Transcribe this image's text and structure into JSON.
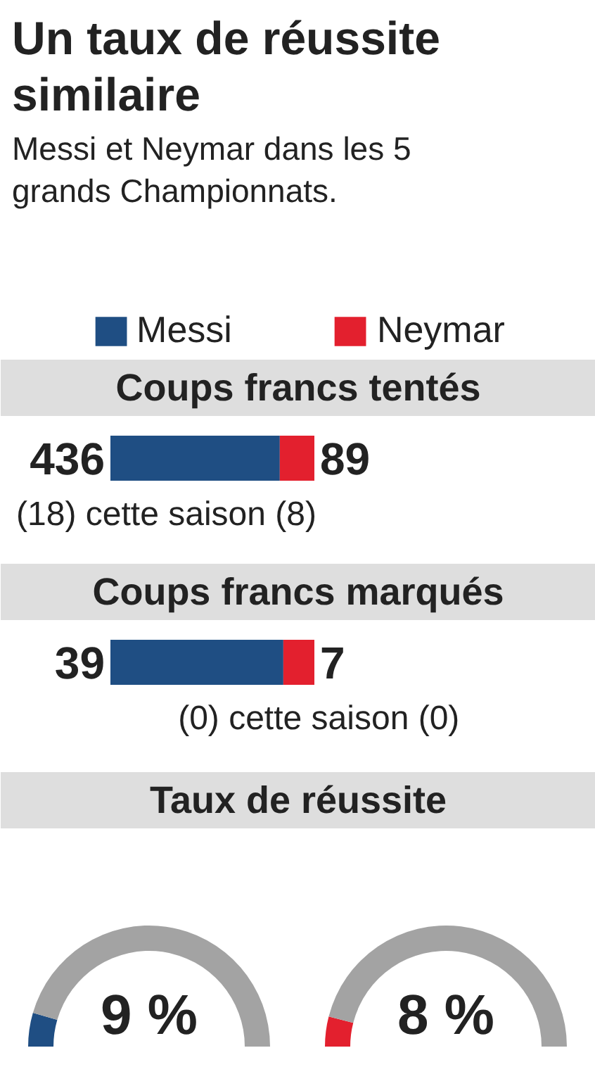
{
  "chart_data": [
    {
      "type": "other",
      "title": "Un taux de réussite similaire",
      "subtitle": "Messi et Neymar dans les 5 grands Championnats."
    },
    {
      "type": "bar",
      "orientation": "horizontal",
      "stacked": true,
      "title": "Coups francs tentés",
      "categories": [
        null
      ],
      "legend": "top",
      "data_labels": true,
      "series": [
        {
          "name": "Messi",
          "color": "#1f4e83",
          "values": [
            436
          ]
        },
        {
          "name": "Neymar",
          "color": "#e3202e",
          "values": [
            89
          ]
        }
      ],
      "annotations": [
        "(18) cette saison (8)"
      ]
    },
    {
      "type": "bar",
      "orientation": "horizontal",
      "stacked": true,
      "title": "Coups francs marqués",
      "categories": [
        null
      ],
      "data_labels": true,
      "series": [
        {
          "color": "#1f4e83",
          "values": [
            39
          ]
        },
        {
          "color": "#e3202e",
          "values": [
            7
          ]
        }
      ],
      "annotations": [
        "(0) cette saison (0)"
      ]
    },
    {
      "type": "donut",
      "title": "Taux de réussite",
      "categories": [
        null,
        null
      ],
      "values": [
        9,
        91
      ],
      "colors": [
        "#1f4e83",
        "#a3a3a3"
      ],
      "annotations": [
        "9 %"
      ]
    },
    {
      "type": "donut",
      "categories": [
        null,
        null
      ],
      "values": [
        8,
        92
      ],
      "colors": [
        "#e3202e",
        "#a3a3a3"
      ],
      "annotations": [
        "8 %"
      ]
    }
  ]
}
